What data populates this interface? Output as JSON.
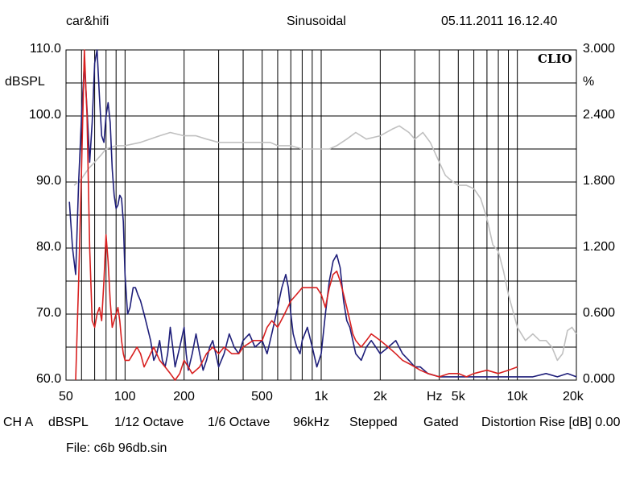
{
  "header": {
    "left": "car&hifi",
    "center": "Sinusoidal",
    "right": "05.11.2011 16.12.40"
  },
  "logo": "CLIO",
  "footer": {
    "items": [
      "CH A",
      "dBSPL",
      "1/12 Octave",
      "1/6 Octave",
      "96kHz",
      "Stepped",
      "Gated",
      "Distortion Rise [dB] 0.00"
    ]
  },
  "file_label": "File: c6b 96db.sin",
  "chart_data": {
    "type": "line",
    "x_scale": "log",
    "xlim": [
      50,
      20000
    ],
    "ylim": [
      60,
      110
    ],
    "y2lim": [
      0,
      3
    ],
    "ylabel": "dBSPL",
    "y2label": "%",
    "x_unit_label": "Hz",
    "grid": true,
    "x_ticks": [
      {
        "value": 50,
        "label": "50"
      },
      {
        "value": 100,
        "label": "100"
      },
      {
        "value": 200,
        "label": "200"
      },
      {
        "value": 500,
        "label": "500"
      },
      {
        "value": 1000,
        "label": "1k"
      },
      {
        "value": 2000,
        "label": "2k"
      },
      {
        "value": 5000,
        "label": "5k"
      },
      {
        "value": 10000,
        "label": "10k"
      },
      {
        "value": 20000,
        "label": "20k"
      }
    ],
    "y_ticks": [
      {
        "value": 110,
        "label": "110.0"
      },
      {
        "value": 100,
        "label": "100.0"
      },
      {
        "value": 90,
        "label": "90.0"
      },
      {
        "value": 80,
        "label": "80.0"
      },
      {
        "value": 70,
        "label": "70.0"
      },
      {
        "value": 60,
        "label": "60.0"
      }
    ],
    "y2_ticks": [
      {
        "value": 3.0,
        "label": "3.000"
      },
      {
        "value": 2.4,
        "label": "2.400"
      },
      {
        "value": 1.8,
        "label": "1.800"
      },
      {
        "value": 1.2,
        "label": "1.200"
      },
      {
        "value": 0.6,
        "label": "0.600"
      },
      {
        "value": 0.0,
        "label": "0.000"
      }
    ],
    "series": [
      {
        "color": "#c0c0c0",
        "axis": "left",
        "points": [
          [
            55,
            89.5
          ],
          [
            60,
            90.5
          ],
          [
            65,
            92
          ],
          [
            70,
            93
          ],
          [
            75,
            94
          ],
          [
            80,
            95
          ],
          [
            90,
            95.5
          ],
          [
            100,
            95.5
          ],
          [
            120,
            96
          ],
          [
            150,
            97
          ],
          [
            170,
            97.5
          ],
          [
            200,
            97
          ],
          [
            230,
            97
          ],
          [
            260,
            96.5
          ],
          [
            300,
            96
          ],
          [
            350,
            96
          ],
          [
            400,
            96
          ],
          [
            450,
            96
          ],
          [
            500,
            96
          ],
          [
            550,
            96
          ],
          [
            600,
            95.5
          ],
          [
            700,
            95.5
          ],
          [
            800,
            95
          ],
          [
            900,
            95
          ],
          [
            1000,
            95
          ],
          [
            1100,
            95
          ],
          [
            1200,
            95.5
          ],
          [
            1350,
            96.5
          ],
          [
            1500,
            97.5
          ],
          [
            1700,
            96.5
          ],
          [
            2000,
            97
          ],
          [
            2300,
            98
          ],
          [
            2500,
            98.5
          ],
          [
            2800,
            97.5
          ],
          [
            3000,
            96.5
          ],
          [
            3300,
            97.5
          ],
          [
            3600,
            96
          ],
          [
            4000,
            93
          ],
          [
            4300,
            91
          ],
          [
            4700,
            90
          ],
          [
            5000,
            89.5
          ],
          [
            5500,
            89.5
          ],
          [
            6000,
            89
          ],
          [
            6500,
            87.5
          ],
          [
            7000,
            84.5
          ],
          [
            7500,
            80.5
          ],
          [
            8000,
            79.5
          ],
          [
            8500,
            76.5
          ],
          [
            9000,
            73
          ],
          [
            10000,
            68
          ],
          [
            11000,
            66
          ],
          [
            12000,
            67
          ],
          [
            13000,
            66
          ],
          [
            14000,
            66
          ],
          [
            15000,
            65
          ],
          [
            16000,
            63
          ],
          [
            17000,
            64
          ],
          [
            18000,
            67.5
          ],
          [
            19000,
            68
          ],
          [
            20000,
            67
          ]
        ]
      },
      {
        "color": "#1f1f7a",
        "axis": "left",
        "points": [
          [
            52,
            87
          ],
          [
            54,
            80
          ],
          [
            56,
            76
          ],
          [
            58,
            90
          ],
          [
            60,
            100
          ],
          [
            62,
            108
          ],
          [
            64,
            101
          ],
          [
            66,
            93
          ],
          [
            68,
            99
          ],
          [
            70,
            108
          ],
          [
            72,
            110
          ],
          [
            74,
            103
          ],
          [
            76,
            97
          ],
          [
            78,
            96
          ],
          [
            80,
            100
          ],
          [
            82,
            102
          ],
          [
            84,
            99
          ],
          [
            86,
            92
          ],
          [
            88,
            88
          ],
          [
            90,
            86
          ],
          [
            92,
            86.5
          ],
          [
            94,
            88
          ],
          [
            96,
            87.5
          ],
          [
            98,
            84
          ],
          [
            100,
            76
          ],
          [
            103,
            70
          ],
          [
            106,
            71
          ],
          [
            110,
            74
          ],
          [
            113,
            74
          ],
          [
            116,
            73
          ],
          [
            120,
            72
          ],
          [
            125,
            70
          ],
          [
            130,
            68
          ],
          [
            135,
            66
          ],
          [
            140,
            63
          ],
          [
            145,
            64
          ],
          [
            150,
            66
          ],
          [
            155,
            63
          ],
          [
            160,
            62
          ],
          [
            165,
            64
          ],
          [
            170,
            68
          ],
          [
            175,
            65
          ],
          [
            180,
            62
          ],
          [
            190,
            65
          ],
          [
            200,
            68
          ],
          [
            205,
            64
          ],
          [
            210,
            61.5
          ],
          [
            220,
            64
          ],
          [
            230,
            67
          ],
          [
            240,
            64
          ],
          [
            250,
            61.5
          ],
          [
            260,
            63
          ],
          [
            270,
            65
          ],
          [
            280,
            66
          ],
          [
            290,
            64
          ],
          [
            300,
            62
          ],
          [
            320,
            64
          ],
          [
            340,
            67
          ],
          [
            360,
            65
          ],
          [
            380,
            64
          ],
          [
            400,
            66
          ],
          [
            430,
            67
          ],
          [
            460,
            65
          ],
          [
            500,
            66
          ],
          [
            530,
            64
          ],
          [
            560,
            67
          ],
          [
            600,
            71
          ],
          [
            630,
            74
          ],
          [
            660,
            76
          ],
          [
            680,
            74
          ],
          [
            700,
            70
          ],
          [
            720,
            67
          ],
          [
            750,
            65
          ],
          [
            780,
            64
          ],
          [
            800,
            66
          ],
          [
            850,
            68
          ],
          [
            900,
            65
          ],
          [
            950,
            62
          ],
          [
            1000,
            64
          ],
          [
            1050,
            70
          ],
          [
            1100,
            75
          ],
          [
            1150,
            78
          ],
          [
            1200,
            79
          ],
          [
            1250,
            77
          ],
          [
            1300,
            72
          ],
          [
            1350,
            69
          ],
          [
            1400,
            68
          ],
          [
            1450,
            66
          ],
          [
            1500,
            64
          ],
          [
            1600,
            63
          ],
          [
            1700,
            65
          ],
          [
            1800,
            66
          ],
          [
            1900,
            65
          ],
          [
            2000,
            64
          ],
          [
            2200,
            65
          ],
          [
            2400,
            66
          ],
          [
            2600,
            64
          ],
          [
            2800,
            63
          ],
          [
            3000,
            62
          ],
          [
            3200,
            62
          ],
          [
            3500,
            61
          ],
          [
            4000,
            60.5
          ],
          [
            4500,
            60.5
          ],
          [
            5000,
            60.5
          ],
          [
            6000,
            60.5
          ],
          [
            7000,
            60.5
          ],
          [
            8000,
            60.5
          ],
          [
            9000,
            60.5
          ],
          [
            10000,
            60.5
          ],
          [
            12000,
            60.5
          ],
          [
            14000,
            61
          ],
          [
            16000,
            60.5
          ],
          [
            18000,
            61
          ],
          [
            20000,
            60.5
          ]
        ]
      },
      {
        "color": "#d82020",
        "axis": "left",
        "points": [
          [
            56,
            60
          ],
          [
            58,
            75
          ],
          [
            60,
            92
          ],
          [
            62,
            110
          ],
          [
            64,
            100
          ],
          [
            66,
            80
          ],
          [
            68,
            69
          ],
          [
            70,
            68
          ],
          [
            72,
            70
          ],
          [
            74,
            71
          ],
          [
            76,
            69
          ],
          [
            78,
            75
          ],
          [
            80,
            82
          ],
          [
            82,
            78
          ],
          [
            84,
            72
          ],
          [
            86,
            68
          ],
          [
            88,
            69
          ],
          [
            90,
            70
          ],
          [
            92,
            71
          ],
          [
            94,
            69
          ],
          [
            96,
            66
          ],
          [
            98,
            64
          ],
          [
            100,
            63
          ],
          [
            105,
            63
          ],
          [
            110,
            64
          ],
          [
            115,
            65
          ],
          [
            120,
            64
          ],
          [
            125,
            62
          ],
          [
            130,
            63
          ],
          [
            140,
            65
          ],
          [
            150,
            63
          ],
          [
            160,
            62
          ],
          [
            170,
            61
          ],
          [
            180,
            60
          ],
          [
            190,
            61
          ],
          [
            200,
            63
          ],
          [
            210,
            62
          ],
          [
            220,
            61
          ],
          [
            240,
            62
          ],
          [
            260,
            64
          ],
          [
            280,
            65
          ],
          [
            300,
            64
          ],
          [
            320,
            65
          ],
          [
            350,
            64
          ],
          [
            380,
            64
          ],
          [
            400,
            65
          ],
          [
            450,
            66
          ],
          [
            500,
            66
          ],
          [
            530,
            68
          ],
          [
            560,
            69
          ],
          [
            600,
            68
          ],
          [
            650,
            70
          ],
          [
            700,
            72
          ],
          [
            750,
            73
          ],
          [
            800,
            74
          ],
          [
            850,
            74
          ],
          [
            900,
            74
          ],
          [
            950,
            74
          ],
          [
            1000,
            73
          ],
          [
            1050,
            71
          ],
          [
            1100,
            74
          ],
          [
            1150,
            76
          ],
          [
            1200,
            76.5
          ],
          [
            1250,
            75
          ],
          [
            1300,
            73
          ],
          [
            1350,
            71
          ],
          [
            1400,
            69
          ],
          [
            1450,
            67
          ],
          [
            1500,
            66
          ],
          [
            1600,
            65
          ],
          [
            1700,
            66
          ],
          [
            1800,
            67
          ],
          [
            1900,
            66.5
          ],
          [
            2000,
            66
          ],
          [
            2200,
            65
          ],
          [
            2400,
            64
          ],
          [
            2600,
            63
          ],
          [
            2800,
            62.5
          ],
          [
            3000,
            62
          ],
          [
            3200,
            61.5
          ],
          [
            3500,
            61
          ],
          [
            4000,
            60.5
          ],
          [
            4500,
            61
          ],
          [
            5000,
            61
          ],
          [
            5500,
            60.5
          ],
          [
            6000,
            61
          ],
          [
            7000,
            61.5
          ],
          [
            8000,
            61
          ],
          [
            9000,
            61.5
          ],
          [
            10000,
            62
          ]
        ]
      }
    ]
  }
}
